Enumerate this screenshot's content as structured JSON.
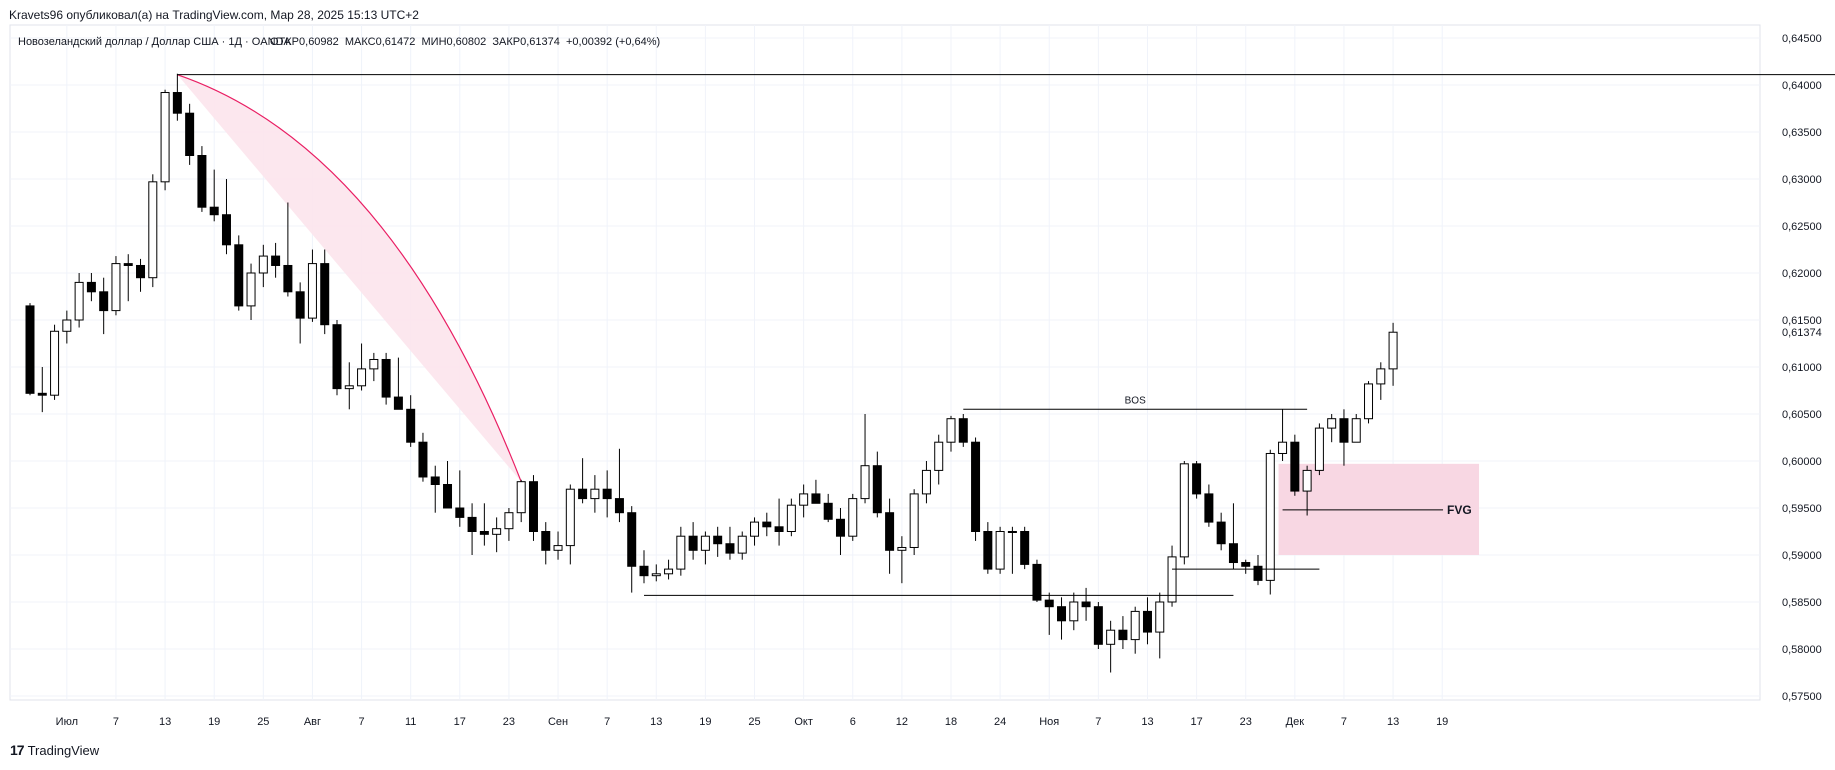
{
  "header": {
    "published_by": "Kravets96 опубликовал(а) на TradingView.com, Мар 28, 2025 15:13 UTC+2"
  },
  "footer": {
    "logo_mark": "17",
    "logo_text": "TradingView"
  },
  "chart_data": {
    "type": "candlestick",
    "symbol_line": "Новозеландский доллар / Доллар США · 1Д · OANDA",
    "ohlc_line": "ОТКР0,60982  МАКС0,61472  МИН0,60802  ЗАКР0,61374  +0,00392 (+0,64%)",
    "current_price_label": "0,61374",
    "ylim": [
      0.574,
      0.647
    ],
    "y_ticks": [
      "0,64500",
      "0,64000",
      "0,63500",
      "0,63000",
      "0,62500",
      "0,62000",
      "0,61500",
      "0,61000",
      "0,60500",
      "0,60000",
      "0,59500",
      "0,59000",
      "0,58500",
      "0,58000",
      "0,57500"
    ],
    "y_tick_values": [
      0.645,
      0.64,
      0.635,
      0.63,
      0.625,
      0.62,
      0.615,
      0.61,
      0.605,
      0.6,
      0.595,
      0.59,
      0.585,
      0.58,
      0.575
    ],
    "x_ticks": [
      {
        "label": "Июл",
        "i": 3
      },
      {
        "label": "7",
        "i": 7
      },
      {
        "label": "13",
        "i": 11
      },
      {
        "label": "19",
        "i": 15
      },
      {
        "label": "25",
        "i": 19
      },
      {
        "label": "Авг",
        "i": 23
      },
      {
        "label": "7",
        "i": 27
      },
      {
        "label": "11",
        "i": 31
      },
      {
        "label": "17",
        "i": 35
      },
      {
        "label": "23",
        "i": 39
      },
      {
        "label": "Сен",
        "i": 43
      },
      {
        "label": "7",
        "i": 47
      },
      {
        "label": "13",
        "i": 51
      },
      {
        "label": "19",
        "i": 55
      },
      {
        "label": "25",
        "i": 59
      },
      {
        "label": "Окт",
        "i": 63
      },
      {
        "label": "6",
        "i": 67
      },
      {
        "label": "12",
        "i": 71
      },
      {
        "label": "18",
        "i": 75
      },
      {
        "label": "24",
        "i": 79
      },
      {
        "label": "Ноя",
        "i": 83
      },
      {
        "label": "7",
        "i": 87
      },
      {
        "label": "13",
        "i": 91
      },
      {
        "label": "17",
        "i": 95
      },
      {
        "label": "23",
        "i": 99
      },
      {
        "label": "Дек",
        "i": 103
      },
      {
        "label": "7",
        "i": 107
      },
      {
        "label": "13",
        "i": 111
      },
      {
        "label": "19",
        "i": 115
      }
    ],
    "candles": [
      {
        "o": 0.6165,
        "h": 0.6168,
        "l": 0.607,
        "c": 0.6072
      },
      {
        "o": 0.6072,
        "h": 0.61,
        "l": 0.6052,
        "c": 0.607
      },
      {
        "o": 0.607,
        "h": 0.6145,
        "l": 0.6065,
        "c": 0.6138
      },
      {
        "o": 0.6138,
        "h": 0.616,
        "l": 0.6125,
        "c": 0.615
      },
      {
        "o": 0.615,
        "h": 0.62,
        "l": 0.6142,
        "c": 0.619
      },
      {
        "o": 0.619,
        "h": 0.62,
        "l": 0.617,
        "c": 0.618
      },
      {
        "o": 0.618,
        "h": 0.6195,
        "l": 0.6135,
        "c": 0.616
      },
      {
        "o": 0.616,
        "h": 0.6218,
        "l": 0.6155,
        "c": 0.621
      },
      {
        "o": 0.621,
        "h": 0.622,
        "l": 0.617,
        "c": 0.6208
      },
      {
        "o": 0.6208,
        "h": 0.6215,
        "l": 0.618,
        "c": 0.6195
      },
      {
        "o": 0.6195,
        "h": 0.6305,
        "l": 0.6185,
        "c": 0.6297
      },
      {
        "o": 0.6297,
        "h": 0.6395,
        "l": 0.6288,
        "c": 0.6392
      },
      {
        "o": 0.6392,
        "h": 0.6412,
        "l": 0.6362,
        "c": 0.637
      },
      {
        "o": 0.637,
        "h": 0.638,
        "l": 0.6315,
        "c": 0.6325
      },
      {
        "o": 0.6325,
        "h": 0.6335,
        "l": 0.6265,
        "c": 0.627
      },
      {
        "o": 0.627,
        "h": 0.631,
        "l": 0.6255,
        "c": 0.6262
      },
      {
        "o": 0.6262,
        "h": 0.63,
        "l": 0.622,
        "c": 0.623
      },
      {
        "o": 0.623,
        "h": 0.624,
        "l": 0.616,
        "c": 0.6165
      },
      {
        "o": 0.6165,
        "h": 0.621,
        "l": 0.615,
        "c": 0.62
      },
      {
        "o": 0.62,
        "h": 0.623,
        "l": 0.6185,
        "c": 0.6218
      },
      {
        "o": 0.6218,
        "h": 0.6232,
        "l": 0.6195,
        "c": 0.6208
      },
      {
        "o": 0.6208,
        "h": 0.6275,
        "l": 0.6175,
        "c": 0.618
      },
      {
        "o": 0.618,
        "h": 0.619,
        "l": 0.6125,
        "c": 0.6152
      },
      {
        "o": 0.6152,
        "h": 0.6225,
        "l": 0.6148,
        "c": 0.621
      },
      {
        "o": 0.621,
        "h": 0.6225,
        "l": 0.6135,
        "c": 0.6145
      },
      {
        "o": 0.6145,
        "h": 0.615,
        "l": 0.607,
        "c": 0.6077
      },
      {
        "o": 0.6077,
        "h": 0.6105,
        "l": 0.6055,
        "c": 0.608
      },
      {
        "o": 0.608,
        "h": 0.6125,
        "l": 0.6075,
        "c": 0.6098
      },
      {
        "o": 0.6098,
        "h": 0.6115,
        "l": 0.6085,
        "c": 0.6108
      },
      {
        "o": 0.6108,
        "h": 0.6115,
        "l": 0.606,
        "c": 0.6068
      },
      {
        "o": 0.6068,
        "h": 0.611,
        "l": 0.6055,
        "c": 0.6055
      },
      {
        "o": 0.6055,
        "h": 0.607,
        "l": 0.6015,
        "c": 0.602
      },
      {
        "o": 0.602,
        "h": 0.603,
        "l": 0.5978,
        "c": 0.5983
      },
      {
        "o": 0.5983,
        "h": 0.5995,
        "l": 0.5945,
        "c": 0.5975
      },
      {
        "o": 0.5975,
        "h": 0.6,
        "l": 0.595,
        "c": 0.595
      },
      {
        "o": 0.595,
        "h": 0.599,
        "l": 0.593,
        "c": 0.594
      },
      {
        "o": 0.594,
        "h": 0.5955,
        "l": 0.59,
        "c": 0.5925
      },
      {
        "o": 0.5925,
        "h": 0.5955,
        "l": 0.591,
        "c": 0.5922
      },
      {
        "o": 0.5922,
        "h": 0.594,
        "l": 0.5903,
        "c": 0.5928
      },
      {
        "o": 0.5928,
        "h": 0.595,
        "l": 0.5915,
        "c": 0.5945
      },
      {
        "o": 0.5945,
        "h": 0.598,
        "l": 0.5935,
        "c": 0.5978
      },
      {
        "o": 0.5978,
        "h": 0.5985,
        "l": 0.5915,
        "c": 0.5925
      },
      {
        "o": 0.5925,
        "h": 0.5935,
        "l": 0.589,
        "c": 0.5905
      },
      {
        "o": 0.5905,
        "h": 0.5925,
        "l": 0.5895,
        "c": 0.591
      },
      {
        "o": 0.591,
        "h": 0.5975,
        "l": 0.589,
        "c": 0.597
      },
      {
        "o": 0.597,
        "h": 0.6003,
        "l": 0.5955,
        "c": 0.596
      },
      {
        "o": 0.596,
        "h": 0.5985,
        "l": 0.5945,
        "c": 0.597
      },
      {
        "o": 0.597,
        "h": 0.599,
        "l": 0.594,
        "c": 0.596
      },
      {
        "o": 0.596,
        "h": 0.6013,
        "l": 0.5935,
        "c": 0.5945
      },
      {
        "o": 0.5945,
        "h": 0.5952,
        "l": 0.586,
        "c": 0.5888
      },
      {
        "o": 0.5888,
        "h": 0.5905,
        "l": 0.587,
        "c": 0.5878
      },
      {
        "o": 0.5878,
        "h": 0.589,
        "l": 0.5872,
        "c": 0.588
      },
      {
        "o": 0.588,
        "h": 0.5895,
        "l": 0.5874,
        "c": 0.5885
      },
      {
        "o": 0.5885,
        "h": 0.593,
        "l": 0.5878,
        "c": 0.592
      },
      {
        "o": 0.592,
        "h": 0.5935,
        "l": 0.5895,
        "c": 0.5905
      },
      {
        "o": 0.5905,
        "h": 0.5925,
        "l": 0.589,
        "c": 0.592
      },
      {
        "o": 0.592,
        "h": 0.593,
        "l": 0.5898,
        "c": 0.5912
      },
      {
        "o": 0.5912,
        "h": 0.593,
        "l": 0.5895,
        "c": 0.5902
      },
      {
        "o": 0.5902,
        "h": 0.5925,
        "l": 0.5895,
        "c": 0.592
      },
      {
        "o": 0.592,
        "h": 0.594,
        "l": 0.591,
        "c": 0.5935
      },
      {
        "o": 0.5935,
        "h": 0.5945,
        "l": 0.592,
        "c": 0.593
      },
      {
        "o": 0.593,
        "h": 0.596,
        "l": 0.591,
        "c": 0.5925
      },
      {
        "o": 0.5925,
        "h": 0.596,
        "l": 0.592,
        "c": 0.5953
      },
      {
        "o": 0.5953,
        "h": 0.5975,
        "l": 0.594,
        "c": 0.5965
      },
      {
        "o": 0.5965,
        "h": 0.598,
        "l": 0.5955,
        "c": 0.5955
      },
      {
        "o": 0.5955,
        "h": 0.5965,
        "l": 0.5935,
        "c": 0.5938
      },
      {
        "o": 0.5938,
        "h": 0.595,
        "l": 0.59,
        "c": 0.592
      },
      {
        "o": 0.592,
        "h": 0.5965,
        "l": 0.5915,
        "c": 0.596
      },
      {
        "o": 0.596,
        "h": 0.605,
        "l": 0.5955,
        "c": 0.5995
      },
      {
        "o": 0.5995,
        "h": 0.601,
        "l": 0.594,
        "c": 0.5945
      },
      {
        "o": 0.5945,
        "h": 0.596,
        "l": 0.588,
        "c": 0.5905
      },
      {
        "o": 0.5905,
        "h": 0.592,
        "l": 0.587,
        "c": 0.5908
      },
      {
        "o": 0.5908,
        "h": 0.597,
        "l": 0.59,
        "c": 0.5965
      },
      {
        "o": 0.5965,
        "h": 0.6,
        "l": 0.5955,
        "c": 0.599
      },
      {
        "o": 0.599,
        "h": 0.6028,
        "l": 0.5975,
        "c": 0.602
      },
      {
        "o": 0.602,
        "h": 0.6048,
        "l": 0.601,
        "c": 0.6045
      },
      {
        "o": 0.6045,
        "h": 0.605,
        "l": 0.6015,
        "c": 0.602
      },
      {
        "o": 0.602,
        "h": 0.6025,
        "l": 0.5915,
        "c": 0.5925
      },
      {
        "o": 0.5925,
        "h": 0.5935,
        "l": 0.588,
        "c": 0.5885
      },
      {
        "o": 0.5885,
        "h": 0.593,
        "l": 0.588,
        "c": 0.5925
      },
      {
        "o": 0.5925,
        "h": 0.593,
        "l": 0.588,
        "c": 0.5925
      },
      {
        "o": 0.5925,
        "h": 0.593,
        "l": 0.5885,
        "c": 0.589
      },
      {
        "o": 0.589,
        "h": 0.5895,
        "l": 0.585,
        "c": 0.5852
      },
      {
        "o": 0.5852,
        "h": 0.586,
        "l": 0.5815,
        "c": 0.5845
      },
      {
        "o": 0.5845,
        "h": 0.5855,
        "l": 0.581,
        "c": 0.583
      },
      {
        "o": 0.583,
        "h": 0.586,
        "l": 0.582,
        "c": 0.585
      },
      {
        "o": 0.585,
        "h": 0.5865,
        "l": 0.583,
        "c": 0.5845
      },
      {
        "o": 0.5845,
        "h": 0.585,
        "l": 0.58,
        "c": 0.5805
      },
      {
        "o": 0.5805,
        "h": 0.583,
        "l": 0.5775,
        "c": 0.582
      },
      {
        "o": 0.582,
        "h": 0.5835,
        "l": 0.58,
        "c": 0.581
      },
      {
        "o": 0.581,
        "h": 0.5845,
        "l": 0.5795,
        "c": 0.584
      },
      {
        "o": 0.584,
        "h": 0.5855,
        "l": 0.5805,
        "c": 0.5818
      },
      {
        "o": 0.5818,
        "h": 0.586,
        "l": 0.579,
        "c": 0.585
      },
      {
        "o": 0.585,
        "h": 0.591,
        "l": 0.5845,
        "c": 0.5898
      },
      {
        "o": 0.5898,
        "h": 0.6,
        "l": 0.589,
        "c": 0.5997
      },
      {
        "o": 0.5997,
        "h": 0.6,
        "l": 0.596,
        "c": 0.5965
      },
      {
        "o": 0.5965,
        "h": 0.5975,
        "l": 0.593,
        "c": 0.5935
      },
      {
        "o": 0.5935,
        "h": 0.5945,
        "l": 0.5905,
        "c": 0.5912
      },
      {
        "o": 0.5912,
        "h": 0.5955,
        "l": 0.5885,
        "c": 0.5892
      },
      {
        "o": 0.5892,
        "h": 0.5895,
        "l": 0.588,
        "c": 0.5888
      },
      {
        "o": 0.5888,
        "h": 0.59,
        "l": 0.5868,
        "c": 0.5873
      },
      {
        "o": 0.5873,
        "h": 0.6012,
        "l": 0.5858,
        "c": 0.6008
      },
      {
        "o": 0.6008,
        "h": 0.6055,
        "l": 0.6,
        "c": 0.602
      },
      {
        "o": 0.602,
        "h": 0.6028,
        "l": 0.5963,
        "c": 0.5968
      },
      {
        "o": 0.5968,
        "h": 0.5995,
        "l": 0.5942,
        "c": 0.599
      },
      {
        "o": 0.599,
        "h": 0.604,
        "l": 0.5985,
        "c": 0.6035
      },
      {
        "o": 0.6035,
        "h": 0.605,
        "l": 0.602,
        "c": 0.6045
      },
      {
        "o": 0.6045,
        "h": 0.6055,
        "l": 0.5995,
        "c": 0.602
      },
      {
        "o": 0.602,
        "h": 0.605,
        "l": 0.602,
        "c": 0.6045
      },
      {
        "o": 0.6045,
        "h": 0.6085,
        "l": 0.604,
        "c": 0.6082
      },
      {
        "o": 0.6082,
        "h": 0.6105,
        "l": 0.6065,
        "c": 0.6098
      },
      {
        "o": 0.6098,
        "h": 0.6147,
        "l": 0.608,
        "c": 0.6137
      }
    ],
    "annotations": {
      "top_line": {
        "price": 0.6411,
        "i_from": 12,
        "i_to": 159
      },
      "curve": {
        "i_from": 12,
        "price_from": 0.6411,
        "i_to": 40,
        "price_to": 0.5978,
        "color": "#e91e63",
        "fill": "#fce4ec"
      },
      "bos": {
        "label": "BOS",
        "price": 0.6055,
        "i_from": 76,
        "i_to": 104
      },
      "low_line": {
        "price": 0.5857,
        "i_from": 50,
        "i_to": 98
      },
      "mid_line": {
        "price": 0.5885,
        "i_from": 93,
        "i_to": 105
      },
      "fvg_zone": {
        "label": "FVG",
        "price_top": 0.5997,
        "price_bottom": 0.59,
        "i_from": 102,
        "i_to": 118,
        "line_price": 0.5948,
        "fill": "#f8d7e3"
      }
    },
    "grid": true,
    "candle_up_color": "#ffffff",
    "candle_down_color": "#000000",
    "wick_color": "#000000"
  }
}
